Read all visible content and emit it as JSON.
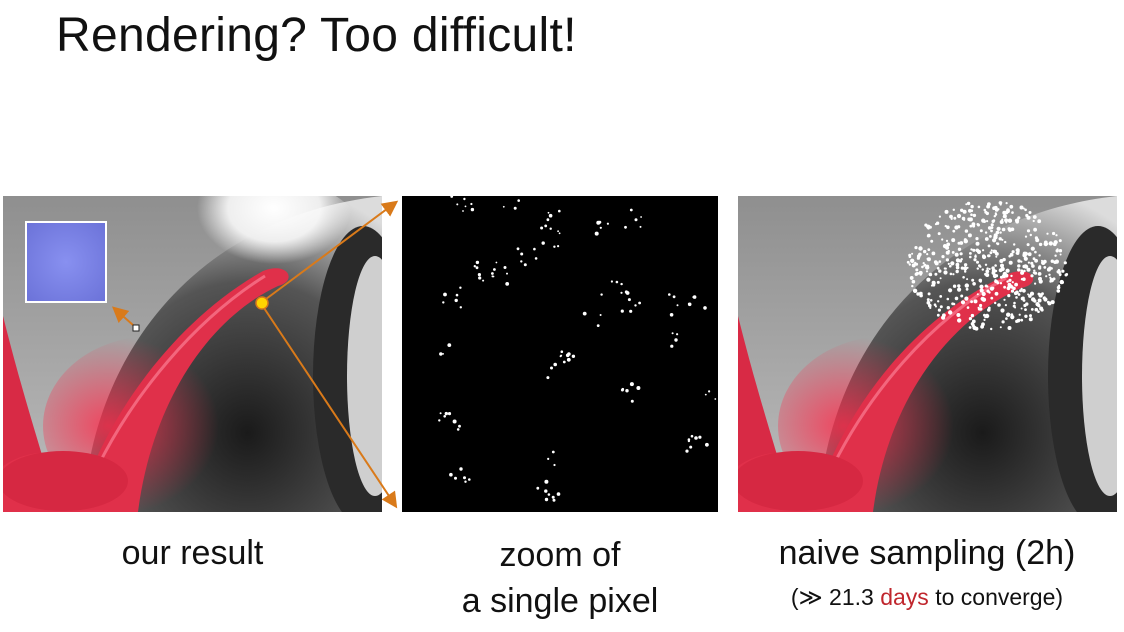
{
  "slide": {
    "title": "Rendering? Too difficult!",
    "captions": {
      "left": "our result",
      "middle_line1": "zoom of",
      "middle_line2": "a single pixel",
      "right": "naive sampling (2h)",
      "right_note_prefix": "(≫ 21.3 ",
      "right_note_highlight": "days",
      "right_note_suffix": " to converge)"
    },
    "colors": {
      "accent_red": "#c0262d",
      "arrow": "#d97a1a",
      "snail_red": "#e0304a",
      "normal_map_blue": "#7b83e6"
    }
  }
}
